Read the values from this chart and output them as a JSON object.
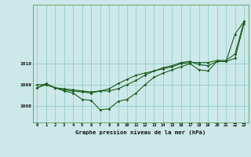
{
  "background_color": "#cce8e8",
  "grid_color": "#88c8c8",
  "line_color": "#1a5c1a",
  "title": "Graphe pression niveau de la mer (hPa)",
  "xlabel_hours": [
    0,
    1,
    2,
    3,
    4,
    5,
    6,
    7,
    8,
    9,
    10,
    11,
    12,
    13,
    14,
    15,
    16,
    17,
    18,
    19,
    20,
    21,
    22,
    23
  ],
  "ylim": [
    1007.2,
    1012.8
  ],
  "yticks": [
    1008,
    1009,
    1010
  ],
  "series1": [
    1009.0,
    1009.0,
    1008.85,
    1008.8,
    1008.75,
    1008.7,
    1008.65,
    1008.7,
    1008.7,
    1008.8,
    1009.0,
    1009.2,
    1009.45,
    1009.65,
    1009.8,
    1009.9,
    1010.05,
    1010.1,
    1009.95,
    1009.9,
    1010.1,
    1010.1,
    1010.25,
    1011.9
  ],
  "series2": [
    1008.85,
    1009.0,
    1008.85,
    1008.7,
    1008.6,
    1008.3,
    1008.25,
    1007.8,
    1007.85,
    1008.2,
    1008.3,
    1008.6,
    1009.0,
    1009.35,
    1009.55,
    1009.7,
    1009.85,
    1010.0,
    1009.7,
    1009.65,
    1010.1,
    1010.1,
    1011.4,
    1012.0
  ],
  "series3": [
    1008.85,
    1009.05,
    1008.85,
    1008.75,
    1008.7,
    1008.65,
    1008.6,
    1008.7,
    1008.8,
    1009.05,
    1009.25,
    1009.45,
    1009.55,
    1009.65,
    1009.75,
    1009.85,
    1010.0,
    1010.05,
    1010.05,
    1010.05,
    1010.15,
    1010.15,
    1010.45,
    1012.0
  ]
}
